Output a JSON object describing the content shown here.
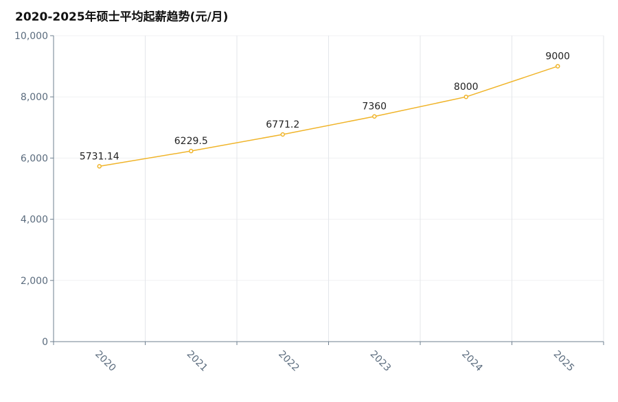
{
  "title": "2020-2025年硕士平均起薪趋势(元/月)",
  "chart_data": {
    "type": "line",
    "title": "2020-2025年硕士平均起薪趋势(元/月)",
    "categories": [
      "2020",
      "2021",
      "2022",
      "2023",
      "2024",
      "2025"
    ],
    "series": [
      {
        "values": [
          5731.14,
          6229.5,
          6771.2,
          7360,
          8000,
          9000
        ],
        "labels": [
          "5731.14",
          "6229.5",
          "6771.2",
          "7360",
          "8000",
          "9000"
        ]
      }
    ],
    "ylim": [
      0,
      10000
    ],
    "yticks": [
      0,
      2000,
      4000,
      6000,
      8000,
      10000
    ],
    "ytick_labels": [
      "0",
      "2,000",
      "4,000",
      "6,000",
      "8,000",
      "10,000"
    ],
    "xlabel": "",
    "ylabel": "",
    "grid": true,
    "line_color": "#f0b429",
    "grid_color": "#e3e6ea",
    "axis_color": "#6e7f8f"
  }
}
